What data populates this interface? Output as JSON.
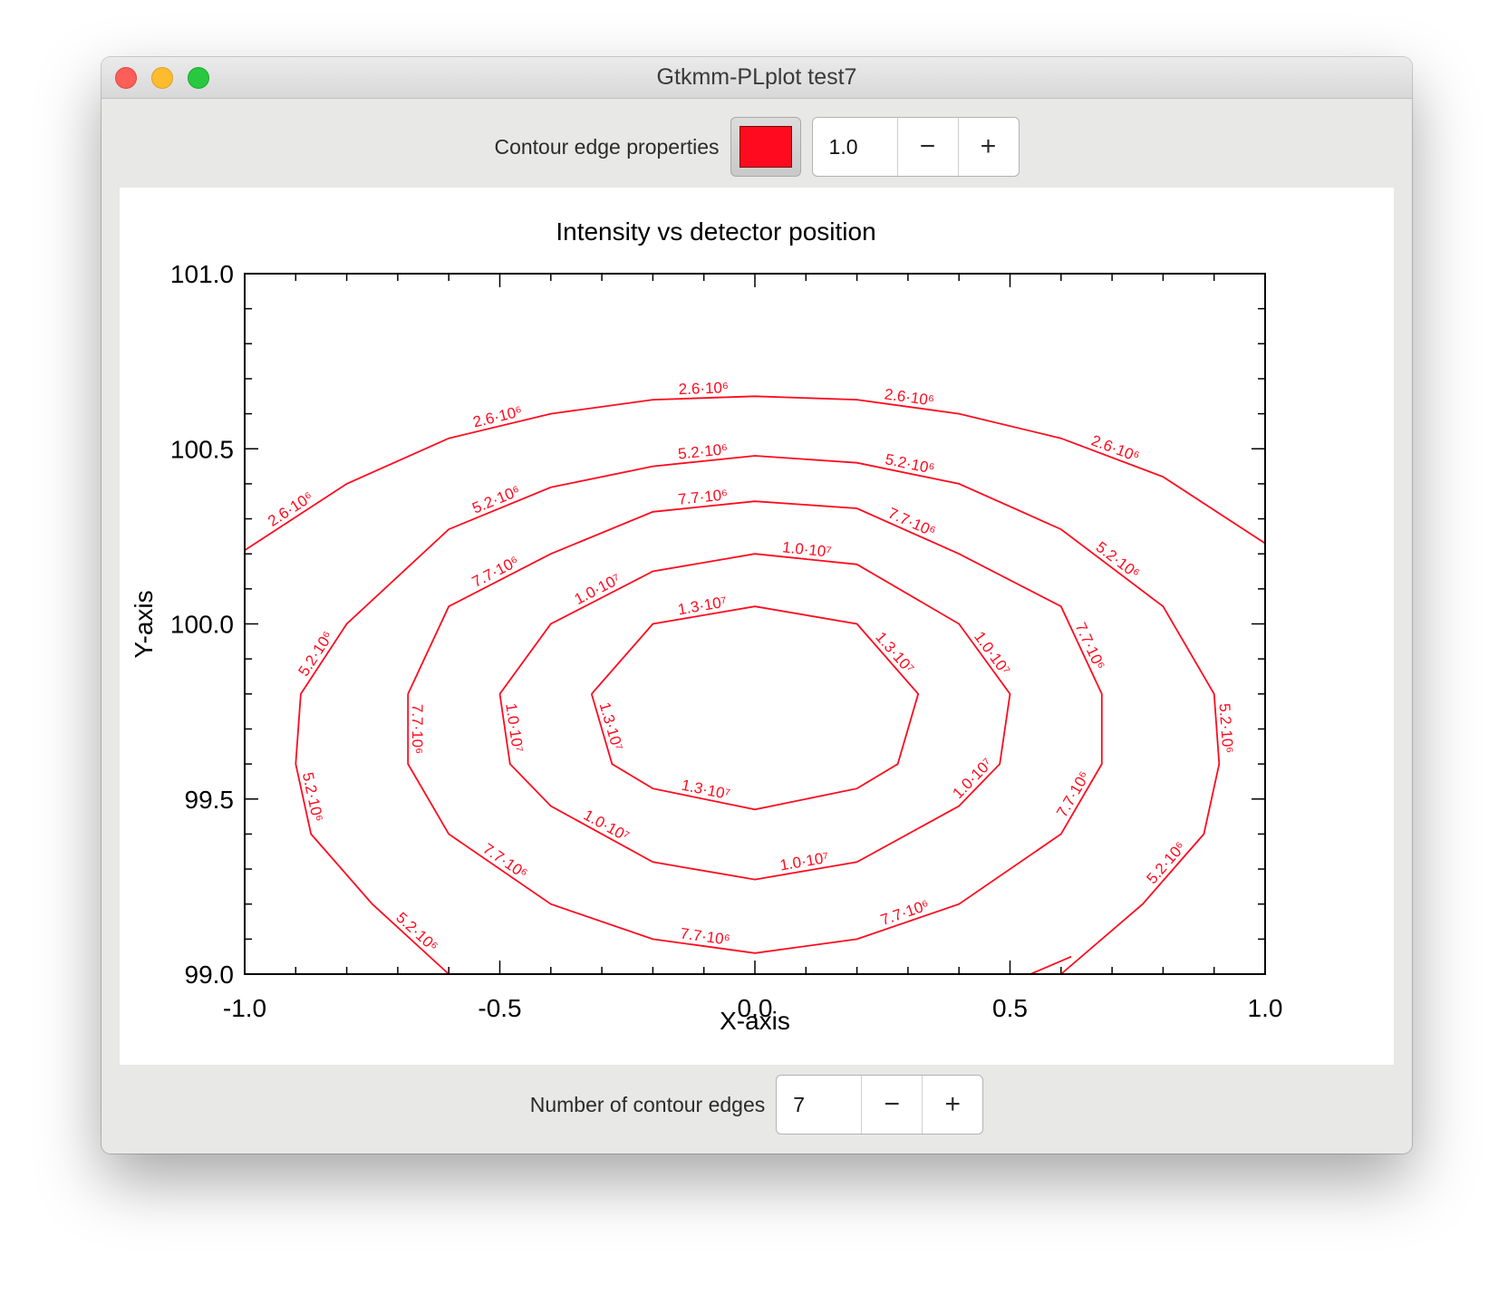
{
  "window": {
    "title": "Gtkmm-PLplot test7"
  },
  "edge_controls": {
    "label": "Contour edge properties",
    "edge_color": "#ff0a1e",
    "width_value": "1.0",
    "decrement": "−",
    "increment": "+"
  },
  "contour_controls": {
    "label": "Number of contour edges",
    "count_value": "7",
    "decrement": "−",
    "increment": "+"
  },
  "chart_data": {
    "type": "contour",
    "title": "Intensity vs detector position",
    "xlabel": "X-axis",
    "ylabel": "Y-axis",
    "xlim": [
      -1.0,
      1.0
    ],
    "ylim": [
      99.0,
      101.0
    ],
    "xticks": [
      "-1.0",
      "-0.5",
      "0.0",
      "0.5",
      "1.0"
    ],
    "yticks": [
      "99.0",
      "99.5",
      "100.0",
      "100.5",
      "101.0"
    ],
    "line_color": "#ff0a1e",
    "grid": false,
    "levels": [
      {
        "label": "2.6·10⁶",
        "paths": [
          [
            [
              -1.0,
              100.21
            ],
            [
              -0.8,
              100.4
            ],
            [
              -0.6,
              100.53
            ],
            [
              -0.4,
              100.6
            ],
            [
              -0.2,
              100.64
            ],
            [
              0.0,
              100.65
            ],
            [
              0.2,
              100.64
            ],
            [
              0.4,
              100.6
            ],
            [
              0.6,
              100.53
            ],
            [
              0.8,
              100.42
            ],
            [
              1.0,
              100.23
            ]
          ],
          [
            [
              0.54,
              99.0
            ],
            [
              0.62,
              99.05
            ]
          ]
        ]
      },
      {
        "label": "5.2·10⁶",
        "paths": [
          [
            [
              -0.6,
              99.0
            ],
            [
              -0.75,
              99.2
            ],
            [
              -0.87,
              99.4
            ],
            [
              -0.9,
              99.6
            ],
            [
              -0.89,
              99.8
            ],
            [
              -0.8,
              100.0
            ],
            [
              -0.6,
              100.27
            ],
            [
              -0.4,
              100.39
            ],
            [
              -0.2,
              100.45
            ],
            [
              0.0,
              100.48
            ],
            [
              0.2,
              100.46
            ],
            [
              0.4,
              100.4
            ],
            [
              0.6,
              100.27
            ],
            [
              0.8,
              100.05
            ],
            [
              0.9,
              99.8
            ],
            [
              0.91,
              99.6
            ],
            [
              0.88,
              99.4
            ],
            [
              0.76,
              99.2
            ],
            [
              0.6,
              99.0
            ]
          ]
        ]
      },
      {
        "label": "7.7·10⁶",
        "paths": [
          [
            [
              -0.68,
              99.8
            ],
            [
              -0.68,
              99.6
            ],
            [
              -0.6,
              99.4
            ],
            [
              -0.4,
              99.2
            ],
            [
              -0.2,
              99.1
            ],
            [
              0.0,
              99.06
            ],
            [
              0.2,
              99.1
            ],
            [
              0.4,
              99.2
            ],
            [
              0.6,
              99.4
            ],
            [
              0.68,
              99.6
            ],
            [
              0.68,
              99.8
            ],
            [
              0.6,
              100.05
            ],
            [
              0.4,
              100.2
            ],
            [
              0.2,
              100.33
            ],
            [
              0.0,
              100.35
            ],
            [
              -0.2,
              100.32
            ],
            [
              -0.4,
              100.2
            ],
            [
              -0.6,
              100.05
            ],
            [
              -0.68,
              99.8
            ]
          ]
        ]
      },
      {
        "label": "1.0·10⁷",
        "paths": [
          [
            [
              -0.5,
              99.8
            ],
            [
              -0.48,
              99.6
            ],
            [
              -0.4,
              99.48
            ],
            [
              -0.2,
              99.32
            ],
            [
              0.0,
              99.27
            ],
            [
              0.2,
              99.32
            ],
            [
              0.4,
              99.48
            ],
            [
              0.48,
              99.6
            ],
            [
              0.5,
              99.8
            ],
            [
              0.4,
              100.0
            ],
            [
              0.2,
              100.17
            ],
            [
              0.0,
              100.2
            ],
            [
              -0.2,
              100.15
            ],
            [
              -0.4,
              100.0
            ],
            [
              -0.5,
              99.8
            ]
          ]
        ]
      },
      {
        "label": "1.3·10⁷",
        "paths": [
          [
            [
              -0.32,
              99.8
            ],
            [
              -0.28,
              99.6
            ],
            [
              -0.2,
              99.53
            ],
            [
              0.0,
              99.47
            ],
            [
              0.2,
              99.53
            ],
            [
              0.28,
              99.6
            ],
            [
              0.32,
              99.8
            ],
            [
              0.2,
              100.0
            ],
            [
              0.0,
              100.05
            ],
            [
              -0.2,
              100.0
            ],
            [
              -0.32,
              99.8
            ]
          ]
        ]
      }
    ]
  }
}
